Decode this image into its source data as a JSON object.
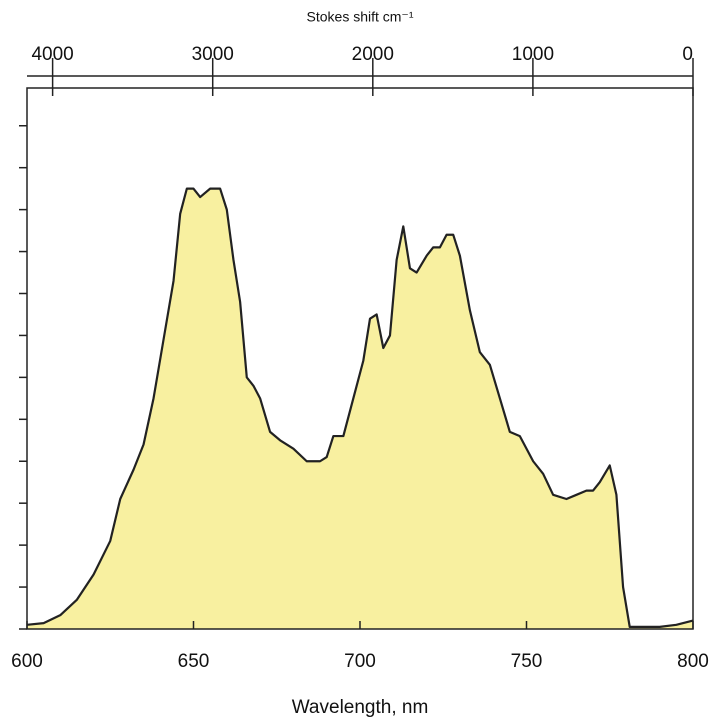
{
  "chart_data": {
    "type": "area",
    "xlabel": "Wavelength, nm",
    "x2label": "Stokes shift cm⁻¹",
    "xlim": [
      600,
      800
    ],
    "xticks": [
      600,
      650,
      700,
      750,
      800
    ],
    "x2lim": [
      4160,
      0
    ],
    "x2ticks": [
      4000,
      3000,
      2000,
      1000,
      0
    ],
    "ylim": [
      0,
      12.9
    ],
    "yticks": [
      0,
      1,
      2,
      3,
      4,
      5,
      6,
      7,
      8,
      9,
      10,
      11,
      12
    ],
    "color": "#f8f0a0",
    "line_color": "#222222",
    "x": [
      600,
      605,
      610,
      615,
      620,
      625,
      628,
      632,
      635,
      638,
      641,
      644,
      646,
      648,
      650,
      652,
      655,
      658,
      660,
      662,
      664,
      666,
      668,
      670,
      673,
      676,
      680,
      684,
      688,
      690,
      692,
      695,
      698,
      701,
      703,
      705,
      707,
      709,
      711,
      713,
      715,
      717,
      720,
      722,
      724,
      726,
      728,
      730,
      733,
      736,
      739,
      742,
      745,
      748,
      752,
      755,
      758,
      762,
      765,
      768,
      770,
      772,
      775,
      777,
      779,
      781,
      790,
      795,
      800
    ],
    "values": [
      0.1,
      0.14,
      0.33,
      0.7,
      1.3,
      2.1,
      3.1,
      3.8,
      4.4,
      5.5,
      6.9,
      8.3,
      9.9,
      10.5,
      10.5,
      10.3,
      10.5,
      10.5,
      10.0,
      8.8,
      7.8,
      6.0,
      5.8,
      5.5,
      4.7,
      4.5,
      4.3,
      4.0,
      4.0,
      4.1,
      4.6,
      4.6,
      5.5,
      6.4,
      7.4,
      7.5,
      6.7,
      7.0,
      8.8,
      9.6,
      8.6,
      8.5,
      8.9,
      9.1,
      9.1,
      9.4,
      9.4,
      8.9,
      7.6,
      6.6,
      6.3,
      5.5,
      4.7,
      4.6,
      4.0,
      3.7,
      3.2,
      3.1,
      3.2,
      3.3,
      3.3,
      3.5,
      3.9,
      3.2,
      1.0,
      0.05,
      0.05,
      0.1,
      0.2
    ]
  }
}
